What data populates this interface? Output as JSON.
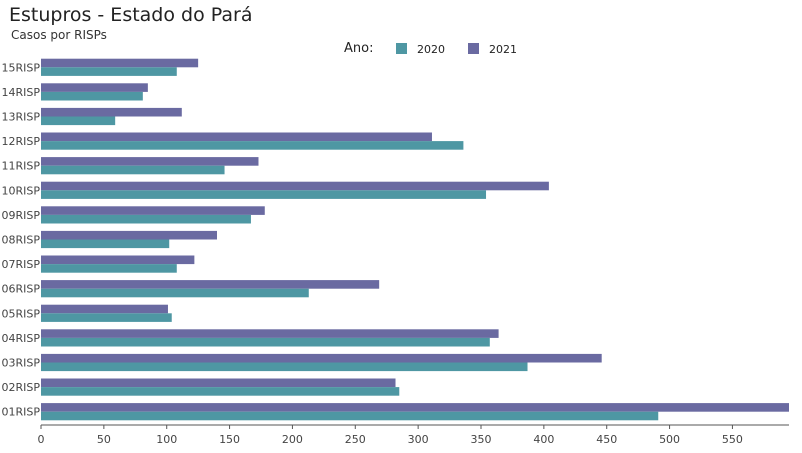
{
  "chart_data": {
    "type": "bar",
    "orientation": "horizontal",
    "title": "Estupros - Estado do Pará",
    "subtitle": "Casos por RISPs",
    "legend_title": "Ano:",
    "legend_position": "top",
    "grid": false,
    "categories": [
      "15RISP",
      "14RISP",
      "13RISP",
      "12RISP",
      "11RISP",
      "10RISP",
      "09RISP",
      "08RISP",
      "07RISP",
      "06RISP",
      "05RISP",
      "04RISP",
      "03RISP",
      "02RISP",
      "01RISP"
    ],
    "series": [
      {
        "name": "2021",
        "color": "#6a6aa1",
        "values": [
          125,
          85,
          112,
          311,
          173,
          404,
          178,
          140,
          122,
          269,
          101,
          364,
          446,
          282,
          595
        ]
      },
      {
        "name": "2020",
        "color": "#4e97a3",
        "values": [
          108,
          81,
          59,
          336,
          146,
          354,
          167,
          102,
          108,
          213,
          104,
          357,
          387,
          285,
          491
        ]
      }
    ],
    "x_ticks": [
      "0",
      "50",
      "100",
      "150",
      "200",
      "250",
      "300",
      "350",
      "400",
      "450",
      "500",
      "550"
    ],
    "xlim": [
      0,
      595
    ]
  }
}
